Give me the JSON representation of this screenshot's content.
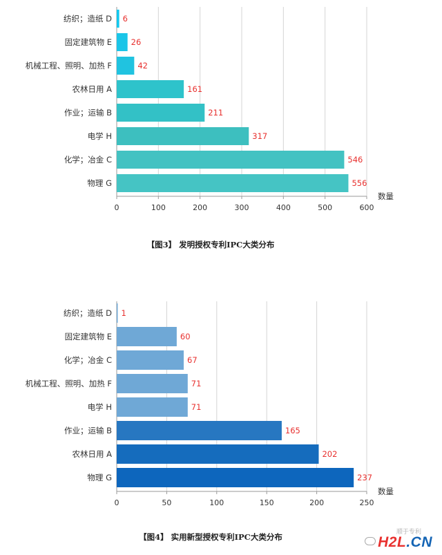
{
  "chart_data": [
    {
      "type": "bar",
      "orientation": "horizontal",
      "categories": [
        "纺织；造纸 D",
        "固定建筑物 E",
        "机械工程、照明、加热 F",
        "农林日用 A",
        "作业；运输 B",
        "电学 H",
        "化学；冶金 C",
        "物理 G"
      ],
      "values": [
        6,
        26,
        42,
        161,
        211,
        317,
        546,
        556
      ],
      "colors": [
        "#11c8ef",
        "#1ac5e8",
        "#20c3e0",
        "#2ec3cb",
        "#33c1c6",
        "#3dbfbf",
        "#43c2c2",
        "#45c4c4"
      ],
      "xticks": [
        "0",
        "100",
        "200",
        "300",
        "400",
        "500",
        "600"
      ],
      "xlim": [
        0,
        600
      ],
      "xlabel": "数量",
      "caption": "【图3】 发明授权专利IPC大类分布",
      "grid": true
    },
    {
      "type": "bar",
      "orientation": "horizontal",
      "categories": [
        "纺织；造纸 D",
        "固定建筑物 E",
        "化学；冶金 C",
        "机械工程、照明、加热 F",
        "电学 H",
        "作业；运输 B",
        "农林日用 A",
        "物理 G"
      ],
      "values": [
        1,
        60,
        67,
        71,
        71,
        165,
        202,
        237
      ],
      "colors": [
        "#6fa8d6",
        "#6fa8d6",
        "#6fa8d6",
        "#6fa8d6",
        "#6fa8d6",
        "#2777c1",
        "#156cbd",
        "#0d66bd"
      ],
      "xticks": [
        "0",
        "50",
        "100",
        "150",
        "200",
        "250"
      ],
      "xlim": [
        0,
        250
      ],
      "xlabel": "数量",
      "caption": "【图4】 实用新型授权专利IPC大类分布",
      "grid": true
    }
  ],
  "watermark": {
    "text_parts": [
      "H2L",
      ".CN"
    ],
    "colors": [
      "#e8312f",
      "#1464b4"
    ],
    "sub_text": "顺于专利"
  }
}
